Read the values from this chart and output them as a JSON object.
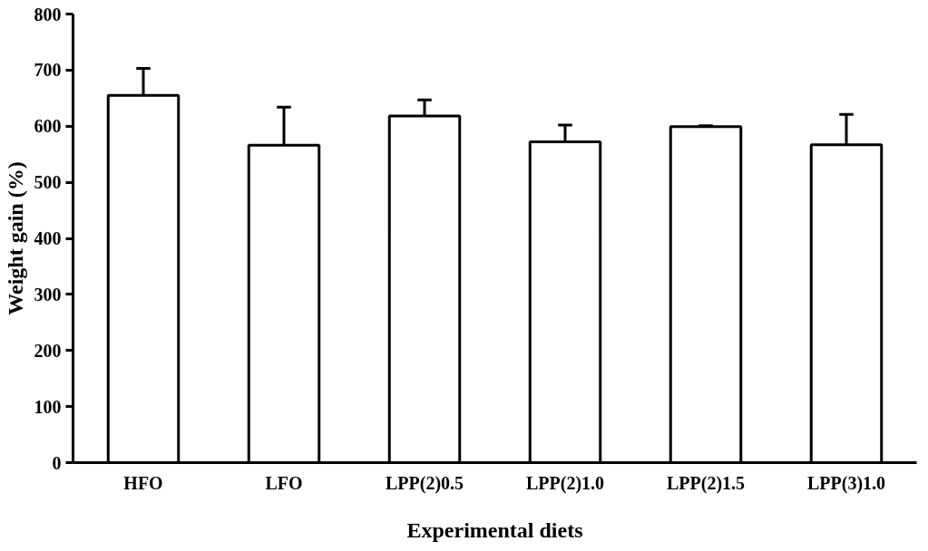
{
  "chart_data": {
    "type": "bar",
    "xlabel": "Experimental diets",
    "ylabel": "Weight gain (%)",
    "categories": [
      "HFO",
      "LFO",
      "LPP(2)0.5",
      "LPP(2)1.0",
      "LPP(2)1.5",
      "LPP(3)1.0"
    ],
    "series": [
      {
        "color": "#ffffff",
        "values": [
          655,
          566,
          618,
          572,
          599,
          567
        ],
        "errors": [
          [
            655,
            703
          ],
          [
            566,
            634
          ],
          [
            618,
            647
          ],
          [
            572,
            602
          ],
          [
            599,
            601
          ],
          [
            567,
            621
          ]
        ]
      }
    ],
    "ylim": [
      0,
      800
    ],
    "yticks": [
      0,
      100,
      200,
      300,
      400,
      500,
      600,
      700,
      800
    ],
    "grid": false
  }
}
